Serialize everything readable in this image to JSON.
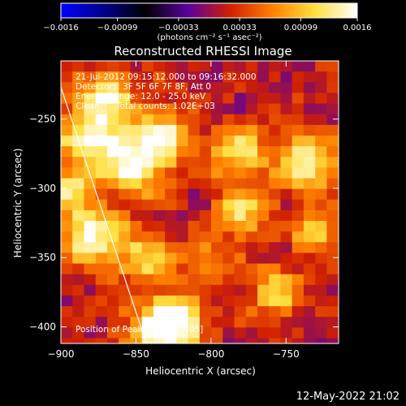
{
  "chart_data": {
    "type": "heatmap",
    "title": "Reconstructed RHESSI Image",
    "xlabel": "Heliocentric X (arcsec)",
    "ylabel": "Heliocentric Y (arcsec)",
    "xlim": [
      -900,
      -715
    ],
    "ylim": [
      -412,
      -208
    ],
    "xticks": [
      {
        "value": -900,
        "label": "−900"
      },
      {
        "value": -850,
        "label": "−850"
      },
      {
        "value": -800,
        "label": "−800"
      },
      {
        "value": -750,
        "label": "−750"
      }
    ],
    "yticks": [
      {
        "value": -250,
        "label": "−250"
      },
      {
        "value": -300,
        "label": "−300"
      },
      {
        "value": -350,
        "label": "−350"
      },
      {
        "value": -400,
        "label": "−400"
      }
    ],
    "colorbar": {
      "range": [
        -0.0016,
        0.0016
      ],
      "ticks": [
        {
          "value": -0.0016,
          "label": "−0.0016"
        },
        {
          "value": -0.00099,
          "label": "−0.00099"
        },
        {
          "value": -0.00033,
          "label": "−0.00033"
        },
        {
          "value": 0.00033,
          "label": "0.00033"
        },
        {
          "value": 0.00099,
          "label": "0.00099"
        },
        {
          "value": 0.0016,
          "label": "0.0016"
        }
      ],
      "unit_label": "(photons cm⁻² s⁻¹ asec⁻²)",
      "colormap": [
        "#0000ff",
        "#00008c",
        "#000000",
        "#5a00a0",
        "#d02000",
        "#ff8000",
        "#ffe040",
        "#ffffff"
      ]
    },
    "annotations": [
      "21-Jul-2012 09:15:12.000 to 09:16:32.000",
      "Detectors: 3F 5F 6F 7F 8F, Att 0",
      "Energy Range: 12.0 - 25.0 keV",
      "Clean      Total counts: 1.02E+03"
    ],
    "peak_label": "Position of Peak = [-834,-405]",
    "peak": {
      "x": -834,
      "y": -405
    },
    "limb_line": [
      {
        "x": -900,
        "y": -227
      },
      {
        "x": -843,
        "y": -412
      }
    ],
    "bright_sources": [
      {
        "x": -832,
        "y": -402,
        "r": 16,
        "v": 0.0016
      },
      {
        "x": -877,
        "y": -262,
        "r": 18,
        "v": 0.0014
      },
      {
        "x": -850,
        "y": -286,
        "r": 14,
        "v": 0.0011
      },
      {
        "x": -833,
        "y": -263,
        "r": 14,
        "v": 0.0012
      },
      {
        "x": -880,
        "y": -333,
        "r": 15,
        "v": 0.0014
      },
      {
        "x": -845,
        "y": -350,
        "r": 12,
        "v": 0.001
      },
      {
        "x": -781,
        "y": -275,
        "r": 13,
        "v": 0.0011
      },
      {
        "x": -779,
        "y": -318,
        "r": 13,
        "v": 0.001
      },
      {
        "x": -735,
        "y": -281,
        "r": 14,
        "v": 0.0013
      },
      {
        "x": -729,
        "y": -330,
        "r": 12,
        "v": 0.0009
      },
      {
        "x": -757,
        "y": -375,
        "r": 12,
        "v": 0.001
      },
      {
        "x": -805,
        "y": -352,
        "r": 11,
        "v": 0.0008
      },
      {
        "x": -868,
        "y": -230,
        "r": 11,
        "v": 0.0011
      },
      {
        "x": -818,
        "y": -392,
        "r": 10,
        "v": 0.0008
      },
      {
        "x": -895,
        "y": -300,
        "r": 10,
        "v": 0.0009
      }
    ]
  },
  "footer": {
    "date": "12-May-2022 21:02"
  }
}
